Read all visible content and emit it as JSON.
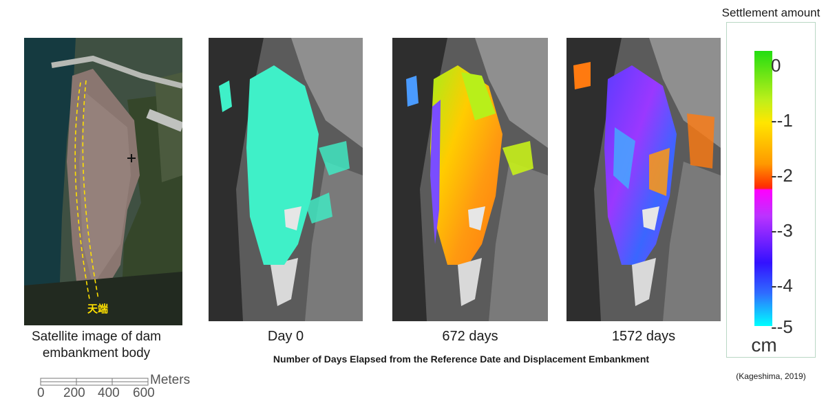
{
  "legend": {
    "title": "Settlement amount",
    "ticks": [
      "0",
      "--1",
      "--2",
      "--3",
      "--4",
      "--5"
    ],
    "unit": "cm"
  },
  "panels": [
    {
      "caption": "Satellite image of dam embankment body",
      "annotation": "天端"
    },
    {
      "caption": "Day 0"
    },
    {
      "caption": "672 days"
    },
    {
      "caption": "1572 days"
    }
  ],
  "subtitle": "Number of Days Elapsed from the Reference Date and Displacement Embankment",
  "citation": "(Kageshima, 2019)",
  "scale": {
    "unit": "Meters",
    "labels": [
      "0",
      "200",
      "400",
      "600"
    ]
  },
  "colors": {
    "frame": "#b9d7c4",
    "day0_overlay": "#3ff0c8",
    "crest_line": "#ffe000"
  }
}
